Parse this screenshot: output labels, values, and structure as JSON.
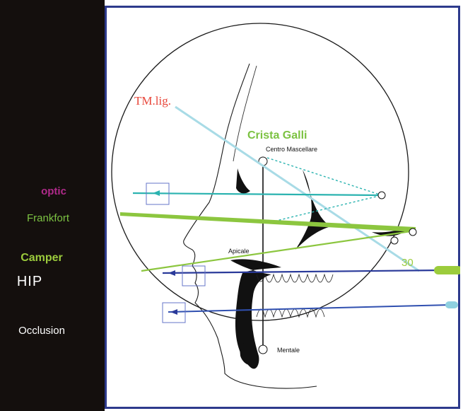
{
  "sidebar": {
    "optic_label": "optic",
    "frankfort_label": "Frankfort",
    "camper_label": "Camper",
    "hip_label": "HIP",
    "occlusion_label": "Occlusion"
  },
  "diagram": {
    "tm_lig_label": "TM.lig.",
    "crista_galli_label": "Crista Galli",
    "centro_mascellare_label": "Centro Mascellare",
    "apicale_label": "Apicale",
    "mentale_label": "Mentale",
    "angle_label": "30"
  },
  "colors": {
    "sidebar_bg": "#140f0d",
    "frame_border": "#2d3a8c",
    "tm_line": "#a8dbe6",
    "optic_line": "#2bb3b0",
    "frankfort_line": "#8cc63f",
    "hip_line": "#2a3a9a",
    "occlusion_line": "#3050b0",
    "tm_text": "#e8463a",
    "crista_text": "#7cc242"
  }
}
